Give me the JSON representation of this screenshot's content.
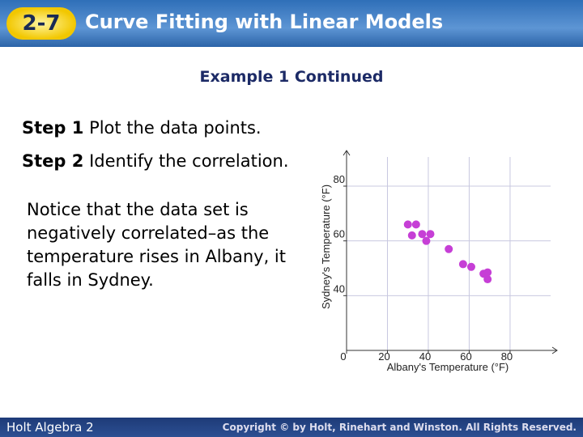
{
  "header": {
    "badge": "2-7",
    "title": "Curve Fitting with Linear Models"
  },
  "subtitle": "Example 1 Continued",
  "steps": [
    {
      "label": "Step 1",
      "text": "Plot the data points."
    },
    {
      "label": "Step 2",
      "text": "Identify the correlation."
    }
  ],
  "notice_lines": [
    "Notice that the data set is",
    "negatively correlated–as the",
    "temperature rises in Albany, it",
    "falls in Sydney."
  ],
  "chart_data": {
    "type": "scatter",
    "x_label": "Albany's Temperature (°F)",
    "y_label": "Sydney's Temperature (°F)",
    "x": [
      30,
      34,
      32,
      37,
      41,
      39,
      50,
      57,
      61,
      67,
      69,
      69
    ],
    "values": [
      66,
      66,
      62,
      62.5,
      62.5,
      60,
      57,
      51.5,
      50.5,
      48,
      48.5,
      46
    ],
    "color": "#c63fd6",
    "xlim": [
      0,
      103
    ],
    "ylim": [
      20,
      93
    ],
    "xticks": [
      0,
      20,
      40,
      60,
      80
    ],
    "yticks": [
      40,
      60,
      80
    ],
    "grid": true
  },
  "footer": {
    "left": "Holt Algebra 2",
    "right": "Copyright © by Holt, Rinehart and Winston. All Rights Reserved."
  }
}
